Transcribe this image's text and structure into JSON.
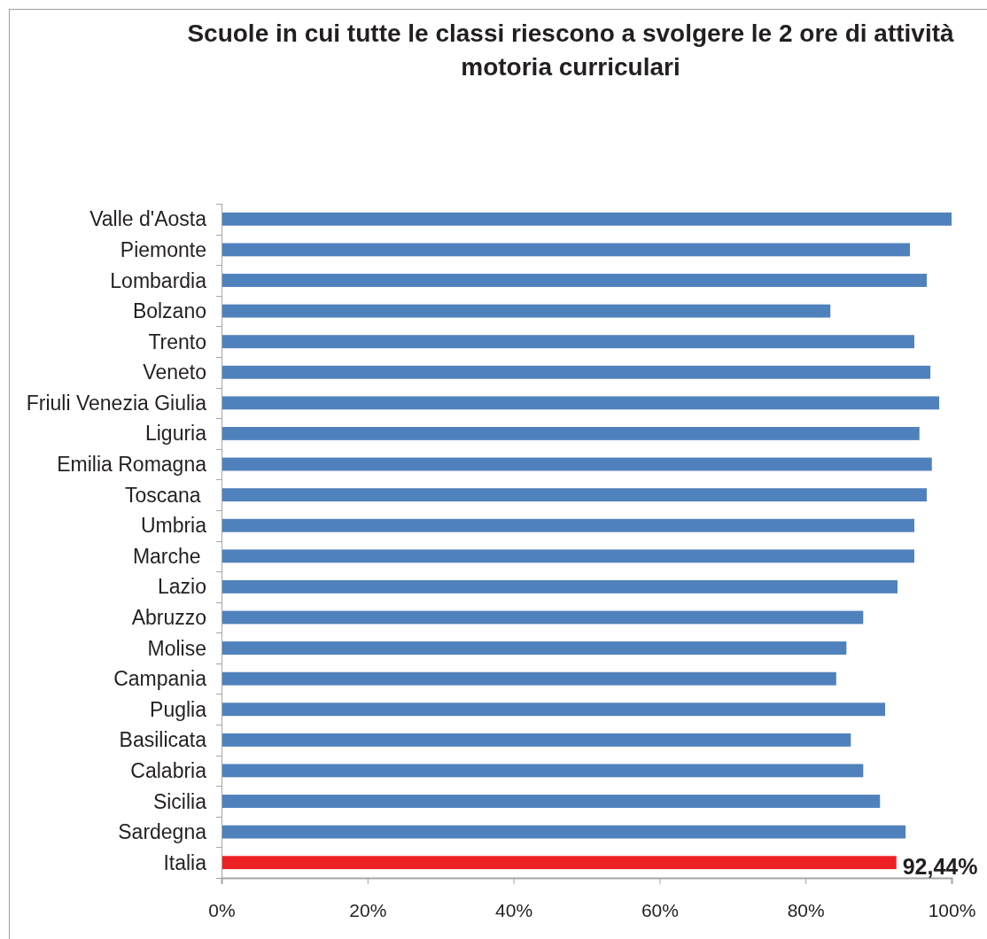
{
  "chart_data": {
    "type": "bar",
    "orientation": "horizontal",
    "title": "Scuole in cui tutte le classi riescono a svolgere le 2 ore di attività motoria curriculari",
    "categories": [
      "Valle d'Aosta",
      "Piemonte",
      "Lombardia",
      "Bolzano",
      "Trento",
      "Veneto",
      "Friuli Venezia Giulia",
      "Liguria",
      "Emilia Romagna",
      "Toscana ",
      "Umbria",
      "Marche ",
      "Lazio",
      "Abruzzo",
      "Molise",
      "Campania",
      "Puglia",
      "Basilicata",
      "Calabria",
      "Sicilia",
      "Sardegna",
      "Italia"
    ],
    "values": [
      100,
      94.3,
      96.6,
      83.4,
      94.9,
      97.1,
      98.3,
      95.6,
      97.3,
      96.6,
      94.9,
      94.9,
      92.6,
      87.9,
      85.6,
      84.2,
      90.9,
      86.2,
      87.9,
      90.2,
      93.7,
      92.44
    ],
    "colors": [
      "#4f81bd",
      "#4f81bd",
      "#4f81bd",
      "#4f81bd",
      "#4f81bd",
      "#4f81bd",
      "#4f81bd",
      "#4f81bd",
      "#4f81bd",
      "#4f81bd",
      "#4f81bd",
      "#4f81bd",
      "#4f81bd",
      "#4f81bd",
      "#4f81bd",
      "#4f81bd",
      "#4f81bd",
      "#4f81bd",
      "#4f81bd",
      "#4f81bd",
      "#4f81bd",
      "#ed2024"
    ],
    "value_labels": [
      null,
      null,
      null,
      null,
      null,
      null,
      null,
      null,
      null,
      null,
      null,
      null,
      null,
      null,
      null,
      null,
      null,
      null,
      null,
      null,
      null,
      "92,44%"
    ],
    "xlim": [
      0,
      100
    ],
    "xticks": [
      {
        "value": 0,
        "label": "0%"
      },
      {
        "value": 20,
        "label": "20%"
      },
      {
        "value": 40,
        "label": "40%"
      },
      {
        "value": 60,
        "label": "60%"
      },
      {
        "value": 80,
        "label": "80%"
      },
      {
        "value": 100,
        "label": "100%"
      }
    ]
  }
}
